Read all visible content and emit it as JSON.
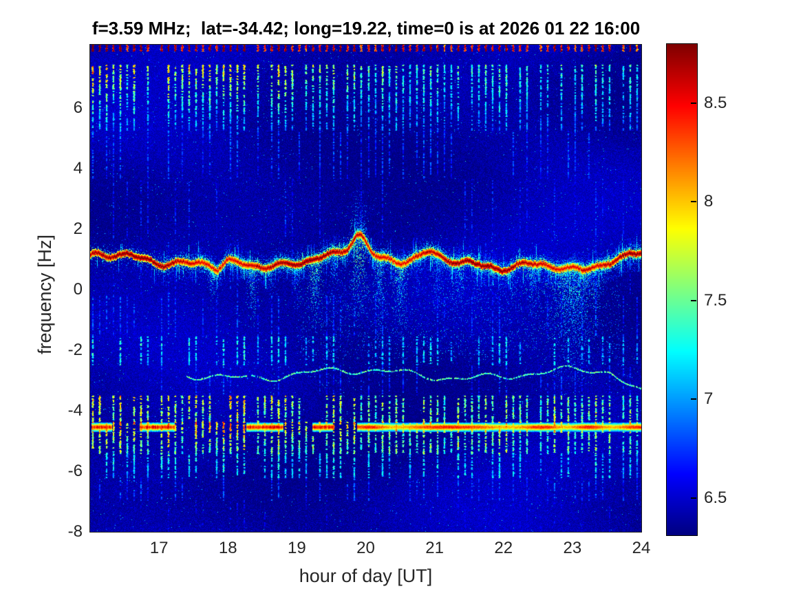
{
  "chart_data": {
    "type": "heatmap",
    "subtype": "doppler-spectrogram",
    "title": "f=3.59 MHz;  lat=-34.42; long=19.22, time=0 is at 2026 01 22 16:00",
    "xlabel": "hour of day [UT]",
    "ylabel": "frequency [Hz]",
    "xlim": [
      16,
      24
    ],
    "ylim": [
      -8,
      8.1
    ],
    "xticks": [
      17,
      18,
      19,
      20,
      21,
      22,
      23,
      24
    ],
    "yticks": [
      6,
      4,
      2,
      0,
      -2,
      -4,
      -6,
      -8
    ],
    "grid": false,
    "colorbar": {
      "position": "right",
      "ticks": [
        8.5,
        8,
        7.5,
        7,
        6.5
      ],
      "range": [
        6.31,
        8.8
      ],
      "colormap": "jet"
    },
    "features": {
      "background_level": 6.33,
      "carrier_trace": {
        "freq_hz": 0.95,
        "wiggle_hz": 0.25,
        "level": 8.8,
        "events": [
          {
            "hour": 19.9,
            "dfreq": 0.75,
            "width_h": 0.12
          },
          {
            "hour": 23.0,
            "dfreq": -0.38,
            "width_h": 0.27
          },
          {
            "hour": 17.85,
            "dfreq": -0.22,
            "width_h": 0.07
          },
          {
            "hour": 20.9,
            "dfreq": 0.2,
            "width_h": 0.1
          },
          {
            "hour": 23.95,
            "dfreq": 0.18,
            "width_h": 0.12
          }
        ]
      },
      "sideband_trace": {
        "freq_hz": -2.78,
        "level": 7.3,
        "start_hour": 17.4,
        "wiggle_hz": 0.25
      },
      "interference_band": {
        "freq_hz": -4.53,
        "half_width_hz": 0.17,
        "level": 8.45
      },
      "stripe_comb": {
        "interval_hours": 0.1,
        "bands": [
          {
            "f_hi": 8.1,
            "f_lo": 7.88,
            "level": 8.62,
            "density": 1.0,
            "fade": 0,
            "left_boost": 0.15
          },
          {
            "f_hi": 7.45,
            "f_lo": 5.25,
            "level": 7.45,
            "density": 0.85,
            "fade": 0.55,
            "left_boost": 0.45
          },
          {
            "f_hi": 5.25,
            "f_lo": 3.66,
            "level": 6.78,
            "density": 0.45,
            "fade": 0.1,
            "left_boost": 0
          },
          {
            "f_hi": 3.66,
            "f_lo": 1.72,
            "level": 6.62,
            "density": 0.32,
            "fade": 0,
            "left_boost": 0
          },
          {
            "f_hi": 1.72,
            "f_lo": -0.2,
            "level": 6.55,
            "density": 0.25,
            "fade": 0,
            "left_boost": 0
          },
          {
            "f_hi": -0.2,
            "f_lo": -1.55,
            "level": 6.7,
            "density": 0.4,
            "fade": 0,
            "left_boost": 0
          },
          {
            "f_hi": -1.55,
            "f_lo": -2.5,
            "level": 7.1,
            "density": 0.6,
            "fade": 0,
            "left_boost": 0.1
          },
          {
            "f_hi": -2.5,
            "f_lo": -3.5,
            "level": 6.65,
            "density": 0.35,
            "fade": 0,
            "left_boost": 0
          },
          {
            "f_hi": -3.5,
            "f_lo": -4.36,
            "level": 7.55,
            "density": 0.9,
            "fade": 0,
            "left_boost": 0.3
          },
          {
            "f_hi": -4.36,
            "f_lo": -4.7,
            "level": 7.9,
            "density": 0.95,
            "fade": 0,
            "left_boost": 0.2
          },
          {
            "f_hi": -4.7,
            "f_lo": -5.4,
            "level": 7.5,
            "density": 0.9,
            "fade": 0,
            "left_boost": 0.25
          },
          {
            "f_hi": -5.4,
            "f_lo": -6.2,
            "level": 7.15,
            "density": 0.8,
            "fade": 0,
            "left_boost": 0.1
          },
          {
            "f_hi": -6.2,
            "f_lo": -6.95,
            "level": 6.72,
            "density": 0.5,
            "fade": 0,
            "left_boost": 0
          },
          {
            "f_hi": -6.95,
            "f_lo": -8.0,
            "level": 6.45,
            "density": 0.25,
            "fade": 0,
            "left_boost": 0
          }
        ]
      },
      "plumes_down": [
        {
          "hour": 17.78,
          "width_h": 0.06,
          "depth_hz": 1.25,
          "level": 7.6
        },
        {
          "hour": 18.35,
          "width_h": 0.07,
          "depth_hz": 1.95,
          "level": 7.7
        },
        {
          "hour": 18.62,
          "width_h": 0.05,
          "depth_hz": 1.15,
          "level": 7.4
        },
        {
          "hour": 19.0,
          "width_h": 0.06,
          "depth_hz": 1.4,
          "level": 7.5
        },
        {
          "hour": 19.27,
          "width_h": 0.08,
          "depth_hz": 2.15,
          "level": 7.8
        },
        {
          "hour": 19.55,
          "width_h": 0.06,
          "depth_hz": 1.6,
          "level": 7.5
        },
        {
          "hour": 19.9,
          "width_h": 0.1,
          "depth_hz": 2.7,
          "level": 7.9
        },
        {
          "hour": 20.2,
          "width_h": 0.07,
          "depth_hz": 3.2,
          "level": 7.6
        },
        {
          "hour": 20.5,
          "width_h": 0.09,
          "depth_hz": 2.5,
          "level": 7.7
        },
        {
          "hour": 20.75,
          "width_h": 0.06,
          "depth_hz": 1.4,
          "level": 7.3
        },
        {
          "hour": 21.05,
          "width_h": 0.07,
          "depth_hz": 2.05,
          "level": 7.5
        },
        {
          "hour": 21.35,
          "width_h": 0.08,
          "depth_hz": 1.6,
          "level": 7.6
        },
        {
          "hour": 21.62,
          "width_h": 0.06,
          "depth_hz": 1.15,
          "level": 7.4
        },
        {
          "hour": 22.1,
          "width_h": 0.07,
          "depth_hz": 1.5,
          "level": 7.5
        },
        {
          "hour": 22.42,
          "width_h": 0.08,
          "depth_hz": 2.05,
          "level": 7.6
        },
        {
          "hour": 23.0,
          "width_h": 0.28,
          "depth_hz": 3.9,
          "level": 7.6
        },
        {
          "hour": 23.35,
          "width_h": 0.1,
          "depth_hz": 1.8,
          "level": 7.3
        }
      ],
      "plumes_up": [
        {
          "hour": 19.9,
          "width_h": 0.09,
          "depth_hz": 1.4,
          "level": 7.5
        },
        {
          "hour": 20.5,
          "width_h": 0.05,
          "depth_hz": 0.6,
          "level": 7.1
        },
        {
          "hour": 21.35,
          "width_h": 0.06,
          "depth_hz": 0.7,
          "level": 7.2
        },
        {
          "hour": 23.0,
          "width_h": 0.2,
          "depth_hz": 0.6,
          "level": 7.1
        }
      ],
      "rain_region": {
        "hour_start": 19.0,
        "hour_end": 23.7,
        "f_hi": 0.4,
        "f_lo": -2.3,
        "count": 2600,
        "level": 6.65
      }
    }
  }
}
